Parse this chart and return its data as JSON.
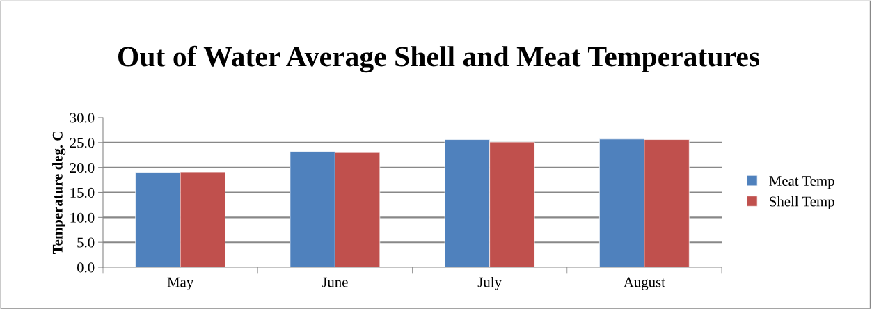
{
  "chart_data": {
    "type": "bar",
    "title": "Out of Water Average Shell and Meat Temperatures",
    "ylabel": "Temperature deg. C",
    "categories": [
      "May",
      "June",
      "July",
      "August"
    ],
    "series": [
      {
        "name": "Meat Temp",
        "color": "#4f81bd",
        "values": [
          19.0,
          23.2,
          25.6,
          25.7
        ]
      },
      {
        "name": "Shell Temp",
        "color": "#c0504d",
        "values": [
          19.1,
          23.0,
          25.1,
          25.6
        ]
      }
    ],
    "ylim": [
      0,
      30
    ],
    "yticks": [
      {
        "value": 0,
        "label": "0.0"
      },
      {
        "value": 5,
        "label": "5.0"
      },
      {
        "value": 10,
        "label": "10.0"
      },
      {
        "value": 15,
        "label": "15.0"
      },
      {
        "value": 20,
        "label": "20.0"
      },
      {
        "value": 25,
        "label": "25.0"
      },
      {
        "value": 30,
        "label": "30.0"
      }
    ],
    "grid": "y",
    "legend": "right"
  }
}
